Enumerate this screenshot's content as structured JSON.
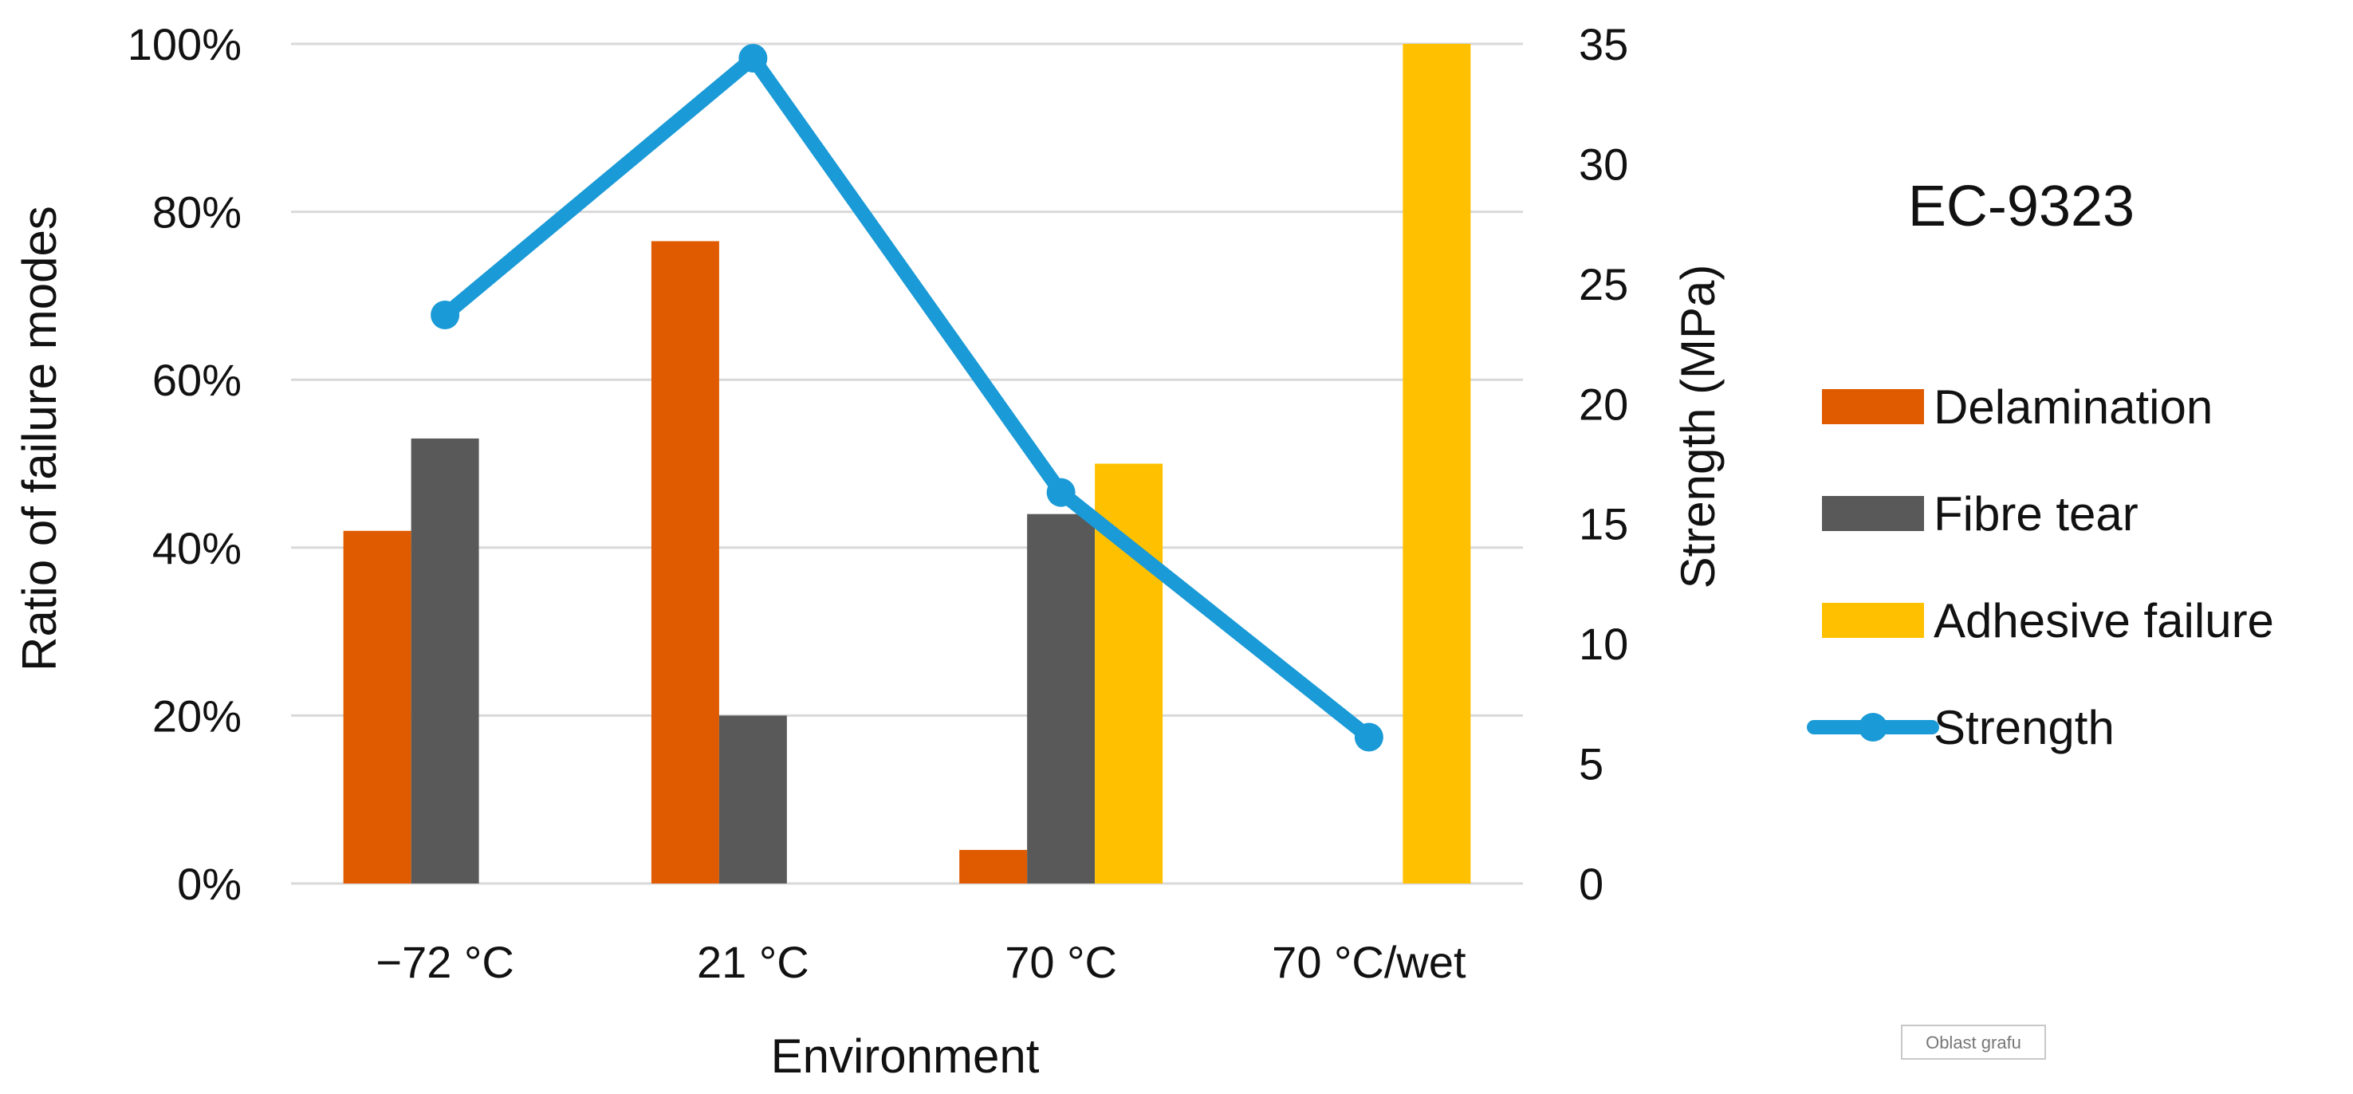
{
  "chart_data": {
    "type": "bar",
    "title": "EC-9323",
    "xlabel": "Environment",
    "ylabel": "Ratio of failure modes",
    "y2label": "Strength (MPa)",
    "categories": [
      "−72 °C",
      "21 °C",
      "70 °C",
      "70 °C/wet"
    ],
    "ylim": [
      0,
      100
    ],
    "yticks": [
      "0%",
      "20%",
      "40%",
      "60%",
      "80%",
      "100%"
    ],
    "y2lim": [
      0,
      35
    ],
    "y2ticks": [
      "0",
      "5",
      "10",
      "15",
      "20",
      "25",
      "30",
      "35"
    ],
    "series": [
      {
        "name": "Delamination",
        "kind": "bar",
        "axis": "left",
        "color": "#E05A00",
        "values": [
          42,
          76.5,
          4,
          0
        ]
      },
      {
        "name": "Fibre tear",
        "kind": "bar",
        "axis": "left",
        "color": "#595959",
        "values": [
          53,
          20,
          44,
          0
        ]
      },
      {
        "name": "Adhesive failure",
        "kind": "bar",
        "axis": "left",
        "color": "#FFC000",
        "values": [
          0,
          0,
          50,
          100
        ]
      },
      {
        "name": "Strength",
        "kind": "line",
        "axis": "right",
        "color": "#1A9AD6",
        "values": [
          23.7,
          34.4,
          16.3,
          6.1
        ]
      }
    ],
    "legend_position": "right"
  },
  "watermark": "Oblast grafu"
}
